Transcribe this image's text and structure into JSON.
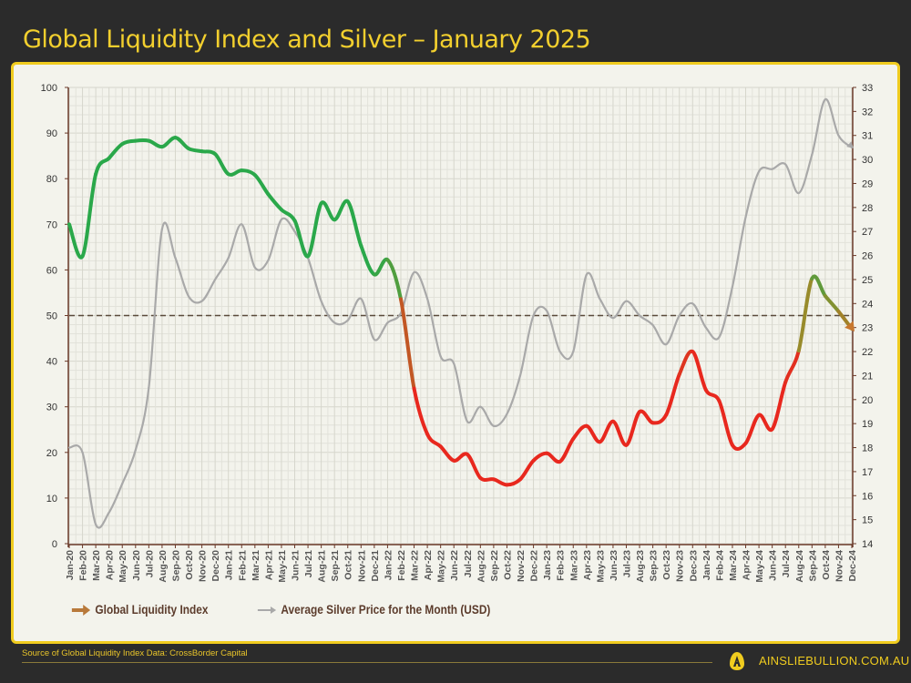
{
  "title": "Global Liquidity Index and Silver – January 2025",
  "source": "Source of Global Liquidity Index Data: CrossBorder Capital",
  "website": "AINSLIEBULLION.COM.AU",
  "legend": [
    {
      "label": "Global Liquidity Index",
      "color": "#b8793a",
      "icon": "arrow-right-icon"
    },
    {
      "label": "Average Silver Price for the Month (USD)",
      "color": "#a9a9a9",
      "icon": "arrow-right-icon"
    }
  ],
  "chart_data": {
    "type": "line",
    "x": [
      "Jan-20",
      "Feb-20",
      "Mar-20",
      "Apr-20",
      "May-20",
      "Jun-20",
      "Jul-20",
      "Aug-20",
      "Sep-20",
      "Oct-20",
      "Nov-20",
      "Dec-20",
      "Jan-21",
      "Feb-21",
      "Mar-21",
      "Apr-21",
      "May-21",
      "Jun-21",
      "Jul-21",
      "Aug-21",
      "Sep-21",
      "Oct-21",
      "Nov-21",
      "Dec-21",
      "Jan-22",
      "Feb-22",
      "Mar-22",
      "Apr-22",
      "May-22",
      "Jun-22",
      "Jul-22",
      "Aug-22",
      "Sep-22",
      "Oct-22",
      "Nov-22",
      "Dec-22",
      "Jan-23",
      "Feb-23",
      "Mar-23",
      "Apr-23",
      "May-23",
      "Jun-23",
      "Jul-23",
      "Aug-23",
      "Sep-23",
      "Oct-23",
      "Nov-23",
      "Dec-23",
      "Jan-24",
      "Feb-24",
      "Mar-24",
      "Apr-24",
      "May-24",
      "Jun-24",
      "Jul-24",
      "Aug-24",
      "Sep-24",
      "Oct-24",
      "Nov-24",
      "Dec-24"
    ],
    "series": [
      {
        "name": "Global Liquidity Index",
        "axis": "left",
        "colors": {
          "high": "#2aa84a",
          "mid": "#9a8a2a",
          "low": "#e8281e"
        },
        "values": [
          70,
          63,
          81,
          84.5,
          87.6,
          88.3,
          88.3,
          87,
          89,
          86.6,
          86,
          85.4,
          81,
          81.8,
          80.8,
          76.6,
          73.2,
          70.8,
          63,
          74.6,
          71,
          75,
          65.3,
          59,
          62.2,
          53.6,
          34,
          24,
          21.3,
          18.2,
          19.6,
          14.4,
          14.1,
          12.9,
          14.1,
          18.2,
          19.8,
          18,
          23,
          25.8,
          22.3,
          26.8,
          21.6,
          28.9,
          26.5,
          28.2,
          37.1,
          42.1,
          33.7,
          31.3,
          21.6,
          22,
          28.2,
          25.1,
          35.4,
          42.3,
          58.1,
          54.3,
          50.9,
          47.1
        ]
      },
      {
        "name": "Average Silver Price for the Month (USD)",
        "axis": "right",
        "color": "#a9a9a9",
        "values": [
          18,
          17.8,
          14.8,
          15.3,
          16.5,
          17.9,
          20.5,
          27.1,
          25.9,
          24.3,
          24.1,
          25,
          25.9,
          27.3,
          25.5,
          25.8,
          27.5,
          27,
          25.9,
          24.1,
          23.2,
          23.3,
          24.2,
          22.5,
          23.2,
          23.6,
          25.3,
          24.2,
          21.8,
          21.5,
          19.1,
          19.7,
          18.9,
          19.4,
          21,
          23.5,
          23.7,
          22,
          22,
          25.2,
          24.2,
          23.4,
          24.1,
          23.5,
          23.1,
          22.3,
          23.5,
          24,
          23,
          22.6,
          24.7,
          27.6,
          29.5,
          29.6,
          29.8,
          28.6,
          30.2,
          32.5,
          31,
          30.5
        ]
      }
    ],
    "left_axis": {
      "range": [
        0,
        100
      ],
      "ticks": [
        0,
        10,
        20,
        30,
        40,
        50,
        60,
        70,
        80,
        90,
        100
      ]
    },
    "right_axis": {
      "range": [
        14,
        33
      ],
      "ticks": [
        14,
        15,
        16,
        17,
        18,
        19,
        20,
        21,
        22,
        23,
        24,
        25,
        26,
        27,
        28,
        29,
        30,
        31,
        32,
        33
      ]
    },
    "reference_line": {
      "value": 50,
      "axis": "left",
      "style": "dashed",
      "color": "#5a4a3a"
    },
    "grid": true,
    "legend_position": "bottom-left",
    "axis_color": "#6b3a2a"
  }
}
